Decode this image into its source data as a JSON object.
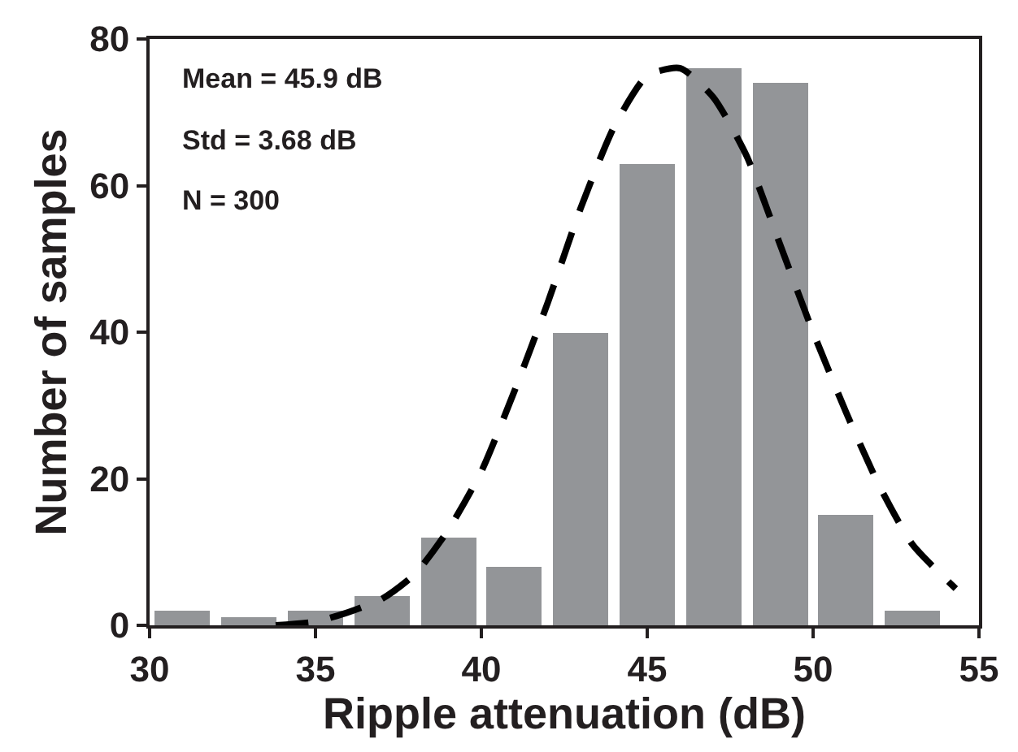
{
  "chart_data": {
    "type": "histogram",
    "xlabel": "Ripple attenuation (dB)",
    "ylabel": "Number of samples",
    "annotations": [
      "Mean = 45.9 dB",
      "Std = 3.68 dB",
      "N = 300"
    ],
    "xlim": [
      30,
      55
    ],
    "xticks": [
      30,
      35,
      40,
      45,
      50,
      55
    ],
    "ylim": [
      0,
      80
    ],
    "yticks": [
      0,
      20,
      40,
      60,
      80
    ],
    "series": [
      {
        "color": "#939598",
        "bins": [
          30,
          32,
          34,
          36,
          38,
          40,
          42,
          44,
          46,
          48,
          50,
          52,
          54
        ],
        "values": [
          2,
          1,
          2,
          4,
          12,
          8,
          40,
          63,
          76,
          74,
          15,
          2
        ]
      },
      {
        "type": "line",
        "color": "#000000",
        "line_style": "dashed",
        "marker": "none",
        "x": [
          33.8,
          35,
          36,
          37,
          38,
          39,
          40,
          41,
          42,
          43,
          44,
          45,
          46,
          47,
          48,
          49,
          50,
          51,
          52,
          53,
          54.3
        ],
        "values": [
          0,
          0.5,
          1.8,
          3.6,
          7,
          13,
          21,
          32,
          44,
          57,
          68,
          75,
          76,
          72,
          64,
          52,
          40,
          29,
          19,
          11,
          5
        ]
      }
    ]
  }
}
